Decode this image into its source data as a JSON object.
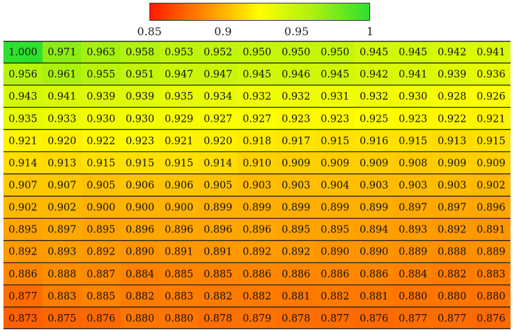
{
  "chart_data": {
    "type": "heatmap",
    "title": "",
    "xlabel": "",
    "ylabel": "",
    "colorbar": {
      "range": [
        0.85,
        1.0
      ],
      "ticks": [
        "0.85",
        "0.9",
        "0.95",
        "1"
      ],
      "colors": [
        "#ff1a00",
        "#ff8c00",
        "#ffff00",
        "#a8f010",
        "#2ee02e"
      ]
    },
    "rows": [
      [
        1.0,
        0.971,
        0.963,
        0.958,
        0.953,
        0.952,
        0.95,
        0.95,
        0.95,
        0.945,
        0.945,
        0.942,
        0.941
      ],
      [
        0.956,
        0.961,
        0.955,
        0.951,
        0.947,
        0.947,
        0.945,
        0.946,
        0.945,
        0.942,
        0.941,
        0.939,
        0.936
      ],
      [
        0.943,
        0.941,
        0.939,
        0.939,
        0.935,
        0.934,
        0.932,
        0.932,
        0.931,
        0.932,
        0.93,
        0.928,
        0.926
      ],
      [
        0.935,
        0.933,
        0.93,
        0.93,
        0.929,
        0.927,
        0.927,
        0.923,
        0.923,
        0.925,
        0.923,
        0.922,
        0.921
      ],
      [
        0.921,
        0.92,
        0.922,
        0.923,
        0.921,
        0.92,
        0.918,
        0.917,
        0.915,
        0.916,
        0.915,
        0.913,
        0.915
      ],
      [
        0.914,
        0.913,
        0.915,
        0.915,
        0.915,
        0.914,
        0.91,
        0.909,
        0.909,
        0.909,
        0.908,
        0.909,
        0.909
      ],
      [
        0.907,
        0.907,
        0.905,
        0.906,
        0.906,
        0.905,
        0.903,
        0.903,
        0.904,
        0.903,
        0.903,
        0.903,
        0.902
      ],
      [
        0.902,
        0.902,
        0.9,
        0.9,
        0.9,
        0.899,
        0.899,
        0.899,
        0.899,
        0.899,
        0.897,
        0.897,
        0.896
      ],
      [
        0.895,
        0.897,
        0.895,
        0.896,
        0.896,
        0.896,
        0.896,
        0.895,
        0.895,
        0.894,
        0.893,
        0.892,
        0.891
      ],
      [
        0.892,
        0.893,
        0.892,
        0.89,
        0.891,
        0.891,
        0.892,
        0.892,
        0.89,
        0.89,
        0.889,
        0.888,
        0.889
      ],
      [
        0.886,
        0.888,
        0.887,
        0.884,
        0.885,
        0.885,
        0.886,
        0.886,
        0.886,
        0.886,
        0.884,
        0.882,
        0.883
      ],
      [
        0.877,
        0.883,
        0.885,
        0.882,
        0.883,
        0.882,
        0.882,
        0.881,
        0.882,
        0.881,
        0.88,
        0.88,
        0.88
      ],
      [
        0.873,
        0.875,
        0.876,
        0.88,
        0.88,
        0.878,
        0.879,
        0.878,
        0.877,
        0.876,
        0.877,
        0.877,
        0.876
      ]
    ]
  }
}
